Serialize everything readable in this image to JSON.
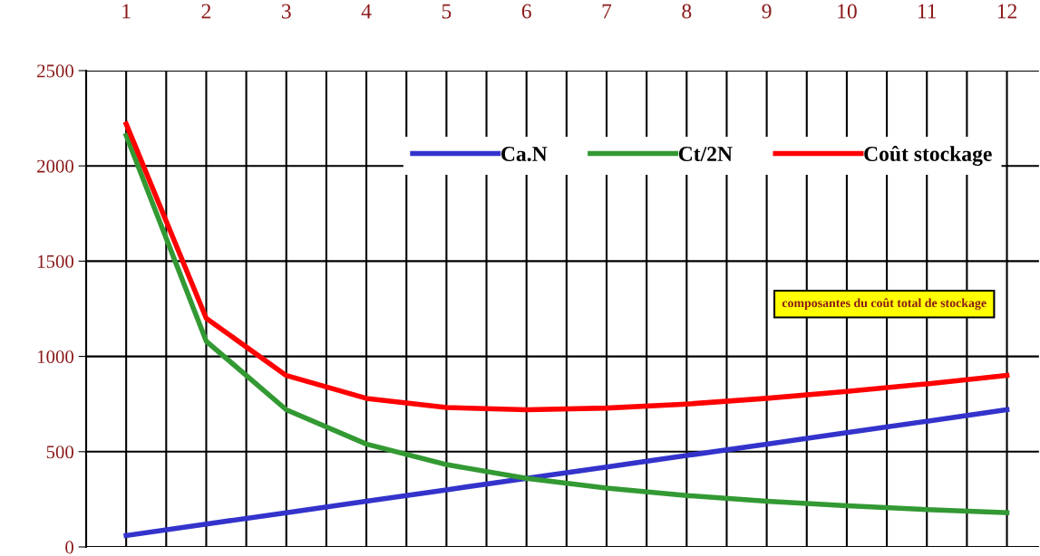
{
  "chart_data": {
    "type": "line",
    "x": [
      1,
      2,
      3,
      4,
      5,
      6,
      7,
      8,
      9,
      10,
      11,
      12
    ],
    "series": [
      {
        "name": "Ca.N",
        "color": "#3333cc",
        "values": [
          60,
          120,
          180,
          240,
          300,
          360,
          420,
          480,
          540,
          600,
          660,
          720
        ]
      },
      {
        "name": "Ct/2N",
        "color": "#339933",
        "values": [
          2160,
          1080,
          720,
          540,
          432,
          360,
          309,
          270,
          240,
          216,
          196,
          180
        ]
      },
      {
        "name": "Coût stockage",
        "color": "#ff0000",
        "values": [
          2220,
          1200,
          900,
          780,
          732,
          720,
          729,
          750,
          780,
          816,
          856,
          900
        ]
      }
    ],
    "xlim": [
      0.5,
      12.4
    ],
    "xticks": [
      {
        "value": 0.5,
        "label": null
      },
      1,
      {
        "value": 1.5,
        "label": null
      },
      2,
      {
        "value": 2.5,
        "label": null
      },
      3,
      {
        "value": 3.5,
        "label": null
      },
      4,
      {
        "value": 4.5,
        "label": null
      },
      5,
      {
        "value": 5.5,
        "label": null
      },
      6,
      {
        "value": 6.5,
        "label": null
      },
      7,
      {
        "value": 7.5,
        "label": null
      },
      8,
      {
        "value": 8.5,
        "label": null
      },
      9,
      {
        "value": 9.5,
        "label": null
      },
      10,
      {
        "value": 10.5,
        "label": null
      },
      11,
      {
        "value": 11.5,
        "label": null
      },
      12
    ],
    "ylim": [
      0,
      2500
    ],
    "yticks": [
      0,
      500,
      1000,
      1500,
      2000,
      2500
    ],
    "grid": true,
    "legend": "top right",
    "marker": "none",
    "line_style": "solid",
    "annotations": [
      "composantes du coût total de stockage"
    ]
  }
}
